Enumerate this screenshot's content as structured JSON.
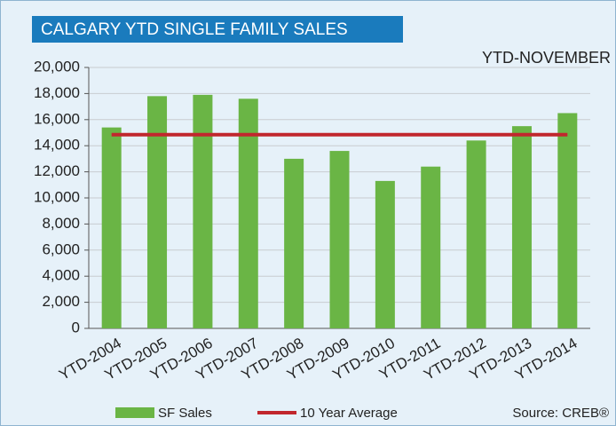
{
  "chart_data": {
    "type": "bar",
    "title": "CALGARY YTD SINGLE FAMILY SALES",
    "annotation": "YTD-NOVEMBER",
    "source": "Source: CREB®",
    "categories": [
      "YTD-2004",
      "YTD-2005",
      "YTD-2006",
      "YTD-2007",
      "YTD-2008",
      "YTD-2009",
      "YTD-2010",
      "YTD-2011",
      "YTD-2012",
      "YTD-2013",
      "YTD-2014"
    ],
    "series": [
      {
        "name": "SF Sales",
        "type": "bar",
        "color": "#6ab545",
        "values": [
          15400,
          17800,
          17900,
          17600,
          13000,
          13600,
          11300,
          12400,
          14400,
          15500,
          16500
        ]
      },
      {
        "name": "10 Year Average",
        "type": "line",
        "color": "#c1272d",
        "values": [
          14850,
          14850,
          14850,
          14850,
          14850,
          14850,
          14850,
          14850,
          14850,
          14850,
          14850
        ]
      }
    ],
    "ylim": [
      0,
      20000
    ],
    "yticks": [
      0,
      {
        "value": 2000,
        "label": "2,000"
      },
      {
        "value": 4000,
        "label": "4,000"
      },
      {
        "value": 6000,
        "label": "6,000"
      },
      {
        "value": 8000,
        "label": "8,000"
      },
      {
        "value": 10000,
        "label": "10,000"
      },
      {
        "value": 12000,
        "label": "12,000"
      },
      {
        "value": 14000,
        "label": "14,000"
      },
      {
        "value": 16000,
        "label": "16,000"
      },
      {
        "value": 18000,
        "label": "18,000"
      },
      {
        "value": 20000,
        "label": "20,000"
      }
    ],
    "grid": true,
    "legend": "bottom"
  }
}
